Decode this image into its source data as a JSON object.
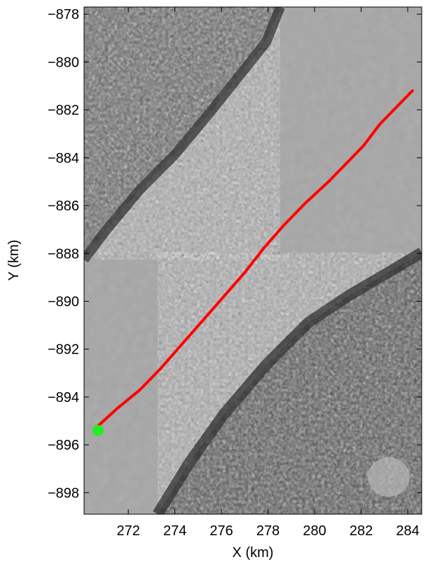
{
  "chart_data": {
    "type": "line",
    "title": "",
    "xlabel": "X (km)",
    "ylabel": "Y (km)",
    "xlim": [
      270.1,
      284.6
    ],
    "ylim": [
      -898.9,
      -877.7
    ],
    "xticks": [
      272,
      274,
      276,
      278,
      280,
      282,
      284
    ],
    "xtick_labels": [
      "272",
      "274",
      "276",
      "278",
      "280",
      "282",
      "284"
    ],
    "yticks": [
      -878,
      -880,
      -882,
      -884,
      -886,
      -888,
      -890,
      -892,
      -894,
      -896,
      -898
    ],
    "ytick_labels": [
      "−878",
      "−880",
      "−882",
      "−884",
      "−886",
      "−888",
      "−890",
      "−892",
      "−894",
      "−896",
      "−898"
    ],
    "grid": false,
    "background": "grayscale satellite imagery of glacier",
    "series": [
      {
        "name": "",
        "color": "#ff0000",
        "x": [
          270.6,
          271.5,
          272.5,
          273.4,
          274.3,
          275.2,
          276.1,
          277.0,
          277.8,
          278.7,
          279.6,
          280.6,
          281.3,
          282.1,
          282.8,
          283.5,
          284.2
        ],
        "y": [
          -895.3,
          -894.5,
          -893.7,
          -892.8,
          -891.8,
          -890.8,
          -889.8,
          -888.8,
          -887.8,
          -886.8,
          -885.9,
          -885.0,
          -884.3,
          -883.5,
          -882.6,
          -881.9,
          -881.2
        ]
      }
    ],
    "start_marker": {
      "x": 270.7,
      "y": -895.4,
      "color": "#22ee22"
    }
  }
}
